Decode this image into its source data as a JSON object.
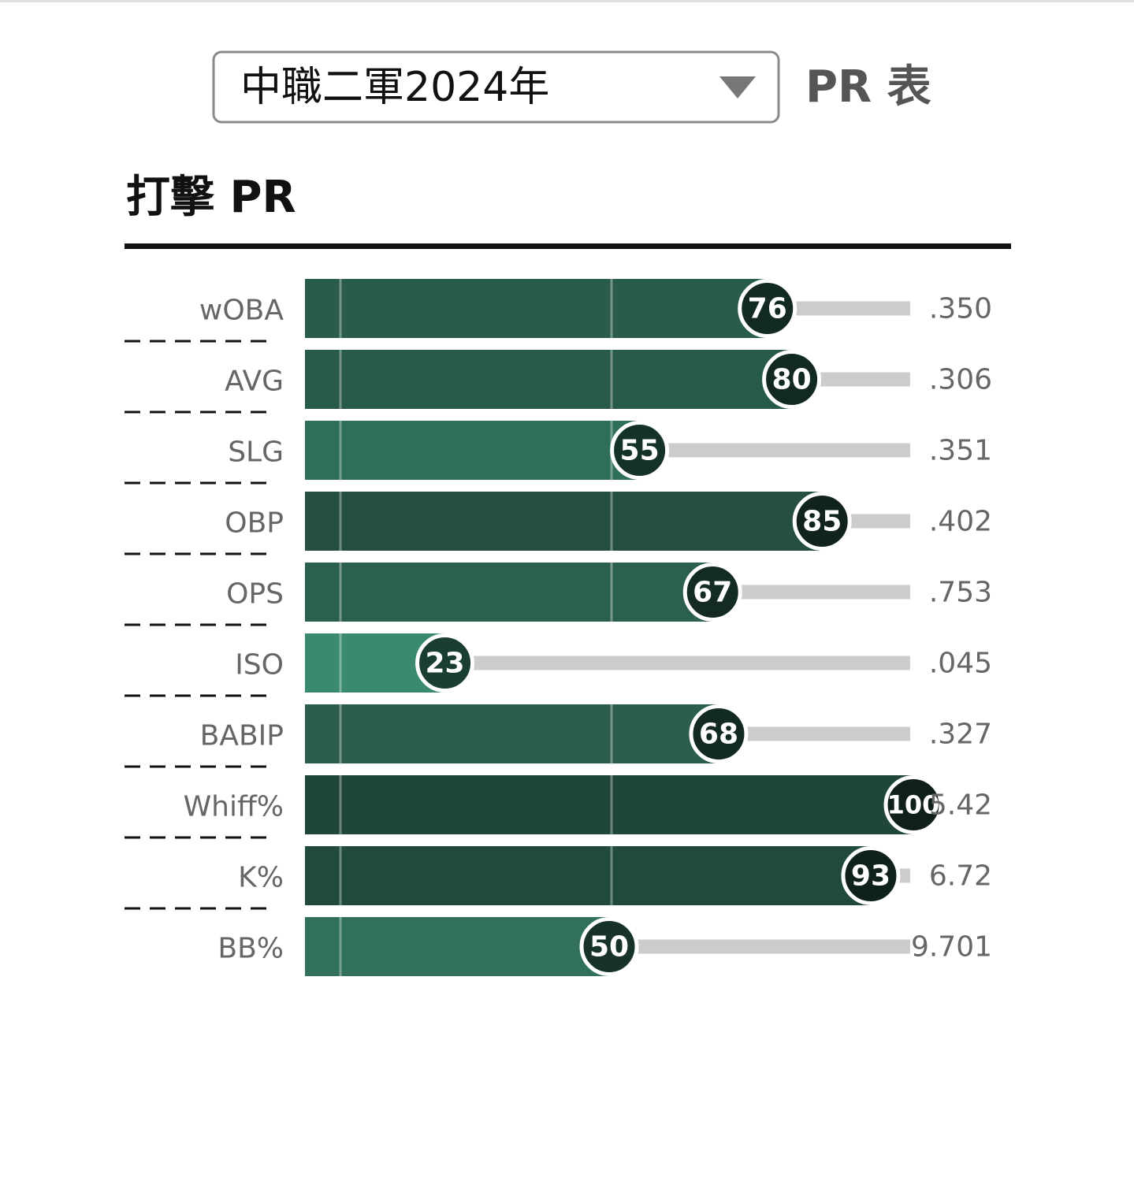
{
  "header": {
    "select": "中職二軍2024年",
    "title": "PR 表"
  },
  "chart_data": {
    "type": "bar",
    "orientation": "horizontal",
    "title": "打擊 PR",
    "categories": [
      "wOBA",
      "AVG",
      "SLG",
      "OBP",
      "OPS",
      "ISO",
      "BABIP",
      "Whiff%",
      "K%",
      "BB%"
    ],
    "values": [
      76,
      80,
      55,
      85,
      67,
      23,
      68,
      100,
      93,
      50
    ],
    "stats": [
      ".350",
      ".306",
      ".351",
      ".402",
      ".753",
      ".045",
      ".327",
      "5.42",
      "6.72",
      "9.701"
    ],
    "colors": [
      "#2a5c4d",
      "#285a4b",
      "#2f6e5b",
      "#244f41",
      "#2b5f4f",
      "#3a8a70",
      "#2b5e4e",
      "#1f4638",
      "#214a3c",
      "#30705c"
    ],
    "xlim": [
      0,
      100
    ]
  }
}
